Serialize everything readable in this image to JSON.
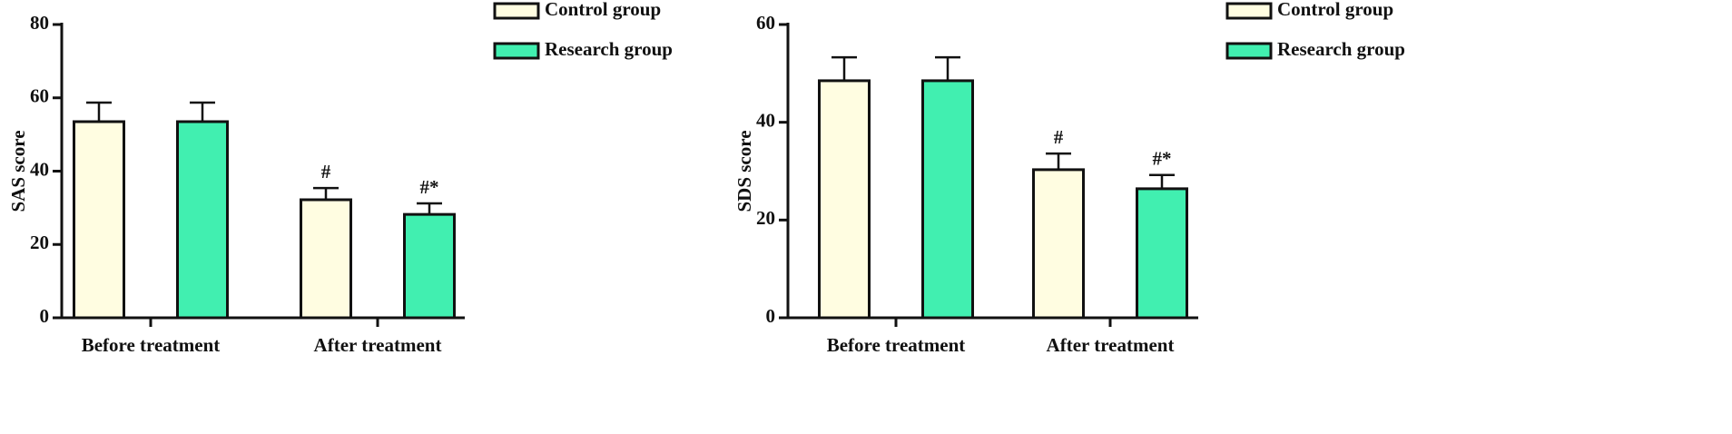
{
  "chart_data": [
    {
      "type": "bar",
      "ylabel": "SAS score",
      "categories": [
        "Before treatment",
        "After treatment"
      ],
      "series": [
        {
          "name": "Control group",
          "color": "#fffde1",
          "values": [
            53.5,
            32.2
          ],
          "errors": [
            5.2,
            3.2
          ],
          "annotations": [
            null,
            "#"
          ]
        },
        {
          "name": "Research group",
          "color": "#41efb0",
          "values": [
            53.5,
            28.2
          ],
          "errors": [
            5.2,
            3.0
          ],
          "annotations": [
            null,
            "#*"
          ]
        }
      ],
      "ylim": [
        0,
        80
      ],
      "yticks": [
        0,
        20,
        40,
        60,
        80
      ],
      "legend": "upper right"
    },
    {
      "type": "bar",
      "ylabel": "SDS score",
      "categories": [
        "Before treatment",
        "After treatment"
      ],
      "series": [
        {
          "name": "Control group",
          "color": "#fffde1",
          "values": [
            48.5,
            30.3
          ],
          "errors": [
            4.8,
            3.3
          ],
          "annotations": [
            null,
            "#"
          ]
        },
        {
          "name": "Research group",
          "color": "#41efb0",
          "values": [
            48.5,
            26.4
          ],
          "errors": [
            4.8,
            2.8
          ],
          "annotations": [
            null,
            "#*"
          ]
        }
      ],
      "ylim": [
        0,
        60
      ],
      "yticks": [
        0,
        20,
        40,
        60
      ],
      "legend": "upper right"
    }
  ]
}
